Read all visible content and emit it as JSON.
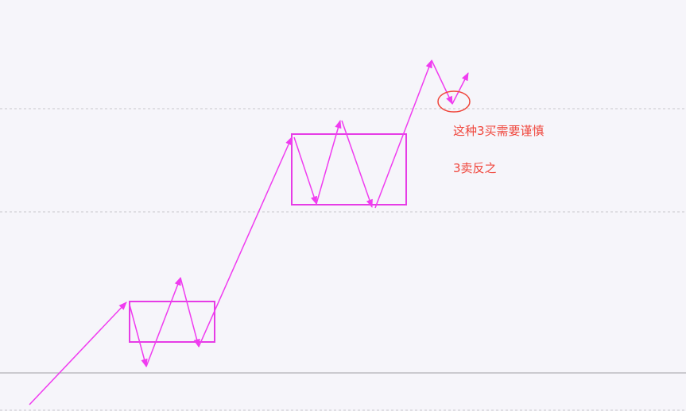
{
  "colors": {
    "background": "#f6f5fa",
    "trend": "#f03cf0",
    "box": "#e63ce6",
    "annotation": "#f0463c",
    "guide": "#c8c8cc",
    "baseline": "#a0a0a4"
  },
  "annotations": {
    "caution_text": "这种3买需要谨慎",
    "sell_text": "3卖反之"
  }
}
